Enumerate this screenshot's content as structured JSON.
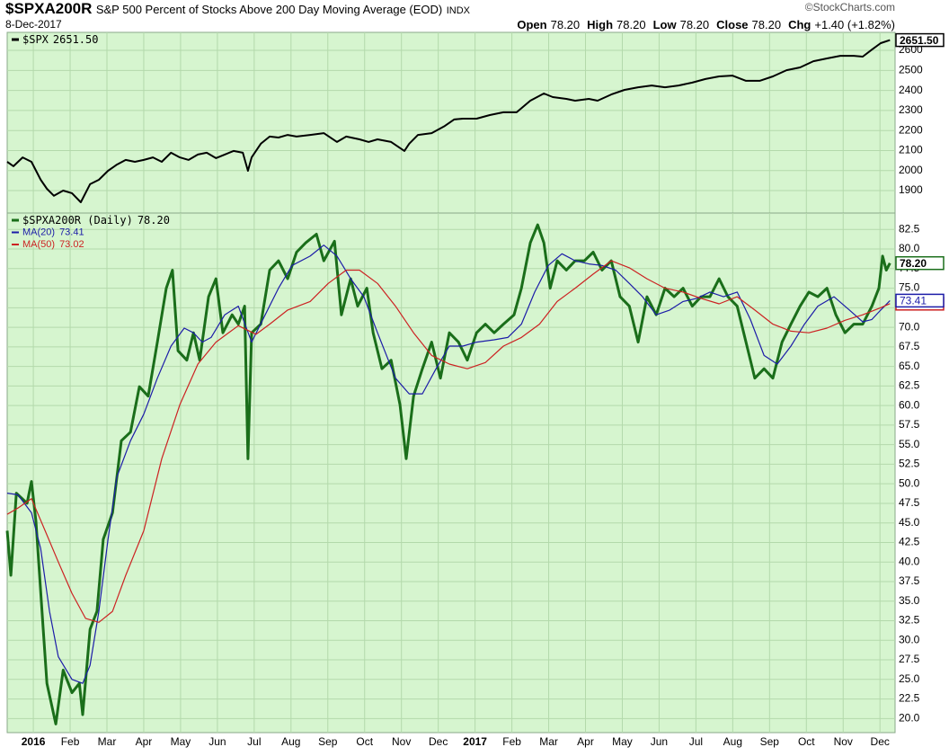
{
  "header": {
    "symbol": "$SPXA200R",
    "description": "S&P 500 Percent of Stocks Above 200 Day Moving Average (EOD)",
    "exchange": "INDX",
    "source": "©StockCharts.com",
    "date": "8-Dec-2017",
    "quote": [
      {
        "label": "Open",
        "value": "78.20"
      },
      {
        "label": "High",
        "value": "78.20"
      },
      {
        "label": "Low",
        "value": "78.20"
      },
      {
        "label": "Close",
        "value": "78.20"
      },
      {
        "label": "Chg",
        "value": "+1.40 (+1.82%)"
      }
    ]
  },
  "chart_data": [
    {
      "type": "line",
      "xlim": [
        -0.71,
        23.41
      ],
      "ylim": [
        1788,
        2690
      ],
      "yticks": [
        1900,
        2000,
        2100,
        2200,
        2300,
        2400,
        2500,
        2600
      ],
      "grid": true,
      "legend": "upper-left",
      "series": [
        {
          "name": "$SPX",
          "color": "#000000",
          "last_label": "2651.50",
          "x": [
            -0.71,
            -0.54,
            -0.29,
            -0.05,
            0.2,
            0.37,
            0.56,
            0.81,
            1.05,
            1.29,
            1.54,
            1.78,
            2.03,
            2.27,
            2.51,
            2.76,
            3.0,
            3.25,
            3.49,
            3.74,
            3.98,
            4.22,
            4.47,
            4.71,
            4.96,
            5.2,
            5.44,
            5.69,
            5.83,
            5.93,
            6.18,
            6.42,
            6.66,
            6.91,
            7.15,
            7.52,
            7.89,
            8.25,
            8.5,
            8.86,
            9.11,
            9.35,
            9.72,
            10.08,
            10.21,
            10.45,
            10.82,
            11.18,
            11.43,
            11.67,
            12.04,
            12.4,
            12.77,
            13.13,
            13.5,
            13.87,
            14.11,
            14.48,
            14.72,
            15.09,
            15.33,
            15.7,
            16.06,
            16.43,
            16.8,
            17.16,
            17.53,
            17.9,
            18.26,
            18.63,
            18.99,
            19.36,
            19.73,
            20.09,
            20.46,
            20.83,
            21.19,
            21.56,
            21.92,
            22.29,
            22.53,
            22.78,
            23.02,
            23.27
          ],
          "values": [
            2044,
            2022,
            2066,
            2044,
            1954,
            1909,
            1874,
            1900,
            1887,
            1842,
            1932,
            1954,
            1999,
            2030,
            2053,
            2044,
            2053,
            2066,
            2044,
            2089,
            2066,
            2053,
            2080,
            2089,
            2062,
            2080,
            2098,
            2089,
            1999,
            2066,
            2134,
            2170,
            2165,
            2178,
            2170,
            2178,
            2187,
            2143,
            2170,
            2156,
            2143,
            2156,
            2143,
            2098,
            2134,
            2178,
            2187,
            2223,
            2255,
            2259,
            2259,
            2277,
            2291,
            2291,
            2349,
            2385,
            2367,
            2358,
            2349,
            2358,
            2349,
            2380,
            2403,
            2416,
            2425,
            2416,
            2425,
            2439,
            2457,
            2470,
            2474,
            2448,
            2448,
            2470,
            2501,
            2515,
            2546,
            2560,
            2573,
            2573,
            2569,
            2604,
            2636,
            2651.5
          ]
        }
      ]
    },
    {
      "type": "line",
      "xlim": [
        -0.71,
        23.41
      ],
      "ylim": [
        18.2,
        84.6
      ],
      "grid": true,
      "legend": "upper-left",
      "yticks": [
        {
          "value": 20,
          "label": "20.0"
        },
        {
          "value": 22.5,
          "label": "22.5"
        },
        {
          "value": 25,
          "label": "25.0"
        },
        {
          "value": 27.5,
          "label": "27.5"
        },
        {
          "value": 30,
          "label": "30.0"
        },
        {
          "value": 32.5,
          "label": "32.5"
        },
        {
          "value": 35,
          "label": "35.0"
        },
        {
          "value": 37.5,
          "label": "37.5"
        },
        {
          "value": 40,
          "label": "40.0"
        },
        {
          "value": 42.5,
          "label": "42.5"
        },
        {
          "value": 45,
          "label": "45.0"
        },
        {
          "value": 47.5,
          "label": "47.5"
        },
        {
          "value": 50,
          "label": "50.0"
        },
        {
          "value": 52.5,
          "label": "52.5"
        },
        {
          "value": 55,
          "label": "55.0"
        },
        {
          "value": 57.5,
          "label": "57.5"
        },
        {
          "value": 60,
          "label": "60.0"
        },
        {
          "value": 62.5,
          "label": "62.5"
        },
        {
          "value": 65,
          "label": "65.0"
        },
        {
          "value": 67.5,
          "label": "67.5"
        },
        {
          "value": 70,
          "label": "70.0"
        },
        {
          "value": 72.5,
          "label": "72.5"
        },
        {
          "value": 75,
          "label": "75.0"
        },
        {
          "value": 77.5,
          "label": "77.5"
        },
        {
          "value": 80,
          "label": "80.0"
        },
        {
          "value": 82.5,
          "label": "82.5"
        }
      ],
      "xticks": [
        {
          "value": 0,
          "label": "2016"
        },
        {
          "value": 1,
          "label": "Feb"
        },
        {
          "value": 2,
          "label": "Mar"
        },
        {
          "value": 3,
          "label": "Apr"
        },
        {
          "value": 4,
          "label": "May"
        },
        {
          "value": 5,
          "label": "Jun"
        },
        {
          "value": 6,
          "label": "Jul"
        },
        {
          "value": 7,
          "label": "Aug"
        },
        {
          "value": 8,
          "label": "Sep"
        },
        {
          "value": 9,
          "label": "Oct"
        },
        {
          "value": 10,
          "label": "Nov"
        },
        {
          "value": 11,
          "label": "Dec"
        },
        {
          "value": 12,
          "label": "2017"
        },
        {
          "value": 13,
          "label": "Feb"
        },
        {
          "value": 14,
          "label": "Mar"
        },
        {
          "value": 15,
          "label": "Apr"
        },
        {
          "value": 16,
          "label": "May"
        },
        {
          "value": 17,
          "label": "Jun"
        },
        {
          "value": 18,
          "label": "Jul"
        },
        {
          "value": 19,
          "label": "Aug"
        },
        {
          "value": 20,
          "label": "Sep"
        },
        {
          "value": 21,
          "label": "Oct"
        },
        {
          "value": 22,
          "label": "Nov"
        },
        {
          "value": 23,
          "label": "Dec"
        }
      ],
      "series": [
        {
          "name": "$SPXA200R (Daily)",
          "color": "#1a6e1a",
          "last_label": "78.20",
          "x": [
            -0.71,
            -0.61,
            -0.46,
            -0.17,
            -0.05,
            0.07,
            0.27,
            0.37,
            0.61,
            0.81,
            1.05,
            1.25,
            1.34,
            1.54,
            1.73,
            1.9,
            2.15,
            2.39,
            2.64,
            2.88,
            3.12,
            3.37,
            3.61,
            3.78,
            3.93,
            4.17,
            4.35,
            4.52,
            4.76,
            4.96,
            5.15,
            5.4,
            5.57,
            5.74,
            5.83,
            5.93,
            6.18,
            6.42,
            6.66,
            6.91,
            7.15,
            7.4,
            7.69,
            7.89,
            8.18,
            8.37,
            8.62,
            8.81,
            9.06,
            9.23,
            9.47,
            9.72,
            9.96,
            10.13,
            10.33,
            10.57,
            10.82,
            11.06,
            11.3,
            11.55,
            11.79,
            12.04,
            12.28,
            12.52,
            12.77,
            13.06,
            13.26,
            13.5,
            13.7,
            13.87,
            14.04,
            14.23,
            14.48,
            14.72,
            14.97,
            15.21,
            15.45,
            15.7,
            15.94,
            16.19,
            16.43,
            16.67,
            16.92,
            17.16,
            17.41,
            17.65,
            17.9,
            18.14,
            18.38,
            18.63,
            18.87,
            19.12,
            19.36,
            19.6,
            19.85,
            20.09,
            20.34,
            20.58,
            20.83,
            21.07,
            21.31,
            21.56,
            21.8,
            22.05,
            22.29,
            22.53,
            22.78,
            22.97,
            23.07,
            23.17,
            23.27
          ],
          "values": [
            44,
            38.3,
            48.8,
            47.5,
            50.3,
            45.2,
            31.4,
            24.5,
            19.3,
            26.2,
            23.3,
            24.5,
            20.5,
            31.4,
            33.7,
            42.9,
            46.3,
            55.5,
            56.6,
            62.4,
            61.2,
            68.1,
            75,
            77.3,
            67,
            65.8,
            69.3,
            65.8,
            73.9,
            76.2,
            69.3,
            71.6,
            70.4,
            72.7,
            53.2,
            69.3,
            70.4,
            77.3,
            78.5,
            76.2,
            79.6,
            80.8,
            81.9,
            78.5,
            81,
            71.6,
            76.2,
            72.7,
            75,
            69.3,
            64.7,
            65.8,
            60.1,
            53.2,
            61.2,
            64.7,
            68.1,
            63.5,
            69.3,
            68.1,
            65.8,
            69.3,
            70.4,
            69.3,
            70.4,
            71.6,
            75,
            80.8,
            83.1,
            80.8,
            75,
            78.5,
            77.3,
            78.5,
            78.5,
            79.6,
            77.3,
            78.5,
            73.9,
            72.7,
            68.1,
            73.9,
            71.6,
            75,
            73.9,
            75,
            72.7,
            73.9,
            73.9,
            76.2,
            73.9,
            72.7,
            68.1,
            63.5,
            64.7,
            63.5,
            68.1,
            70.4,
            72.7,
            74.5,
            73.9,
            75,
            71.6,
            69.3,
            70.4,
            70.4,
            72.7,
            75,
            79.1,
            77.3,
            78.2
          ]
        },
        {
          "name": "MA(20)",
          "color": "#1c1ca8",
          "last_label": "73.41",
          "x": [
            -0.71,
            -0.42,
            -0.05,
            0.2,
            0.44,
            0.68,
            1.05,
            1.34,
            1.54,
            1.78,
            2.03,
            2.27,
            2.64,
            3.0,
            3.37,
            3.74,
            4.1,
            4.35,
            4.59,
            4.83,
            5.2,
            5.57,
            5.93,
            6.3,
            6.66,
            7.03,
            7.52,
            7.89,
            8.25,
            8.62,
            8.98,
            9.35,
            9.84,
            10.21,
            10.57,
            10.94,
            11.3,
            11.67,
            12.04,
            12.52,
            12.89,
            13.26,
            13.62,
            13.99,
            14.36,
            14.72,
            15.09,
            15.45,
            15.82,
            16.19,
            16.55,
            16.92,
            17.29,
            17.65,
            18.02,
            18.38,
            18.75,
            19.12,
            19.48,
            19.85,
            20.21,
            20.58,
            20.95,
            21.31,
            21.75,
            22.17,
            22.53,
            22.78,
            23.02,
            23.27
          ],
          "values": [
            48.8,
            48.6,
            46.3,
            41.7,
            33.7,
            27.9,
            25,
            24.5,
            26.8,
            33.7,
            42.9,
            50.9,
            55.5,
            58.9,
            63.5,
            67.6,
            69.9,
            69.3,
            68.1,
            68.7,
            71.6,
            72.7,
            68.1,
            71.6,
            75,
            77.9,
            79.1,
            80.5,
            79.1,
            76.2,
            73.9,
            69.3,
            63.5,
            61.5,
            61.5,
            64.7,
            67.6,
            67.6,
            68.1,
            68.4,
            68.7,
            70.4,
            74.5,
            77.9,
            79.4,
            78.5,
            78.1,
            77.9,
            77.3,
            75.6,
            73.9,
            71.6,
            72.2,
            73.3,
            73.7,
            74.5,
            73.9,
            74.5,
            71,
            66.4,
            65.3,
            67.6,
            70.4,
            72.7,
            73.9,
            72.2,
            70.7,
            71,
            72.2,
            73.41
          ]
        },
        {
          "name": "MA(50)",
          "color": "#cc2222",
          "last_label": "73.02",
          "x": [
            -0.71,
            -0.42,
            -0.05,
            0.32,
            0.68,
            1.05,
            1.42,
            1.78,
            2.15,
            2.51,
            3.0,
            3.49,
            3.98,
            4.47,
            4.96,
            5.57,
            6.05,
            6.42,
            6.91,
            7.52,
            8.01,
            8.5,
            8.86,
            9.35,
            9.84,
            10.33,
            10.82,
            11.3,
            11.79,
            12.28,
            12.77,
            13.26,
            13.75,
            14.23,
            14.72,
            15.21,
            15.7,
            16.19,
            16.67,
            17.16,
            17.65,
            18.14,
            18.63,
            19.12,
            19.6,
            20.09,
            20.58,
            21.07,
            21.56,
            22.05,
            22.53,
            23.02,
            23.27
          ],
          "values": [
            46.1,
            46.9,
            48.1,
            44,
            40,
            36,
            32.8,
            32.3,
            33.7,
            38.3,
            44,
            53.2,
            60.1,
            65.3,
            68.1,
            70.2,
            69.1,
            70.4,
            72.2,
            73.3,
            75.6,
            77.3,
            77.3,
            75.6,
            72.7,
            69.3,
            66.4,
            65.3,
            64.7,
            65.5,
            67.6,
            68.7,
            70.4,
            73.3,
            75,
            76.8,
            78.5,
            77.6,
            76.2,
            75,
            74.5,
            73.7,
            73,
            73.9,
            72.2,
            70.4,
            69.5,
            69.3,
            69.9,
            70.9,
            71.6,
            72.5,
            73.02
          ]
        }
      ]
    }
  ]
}
